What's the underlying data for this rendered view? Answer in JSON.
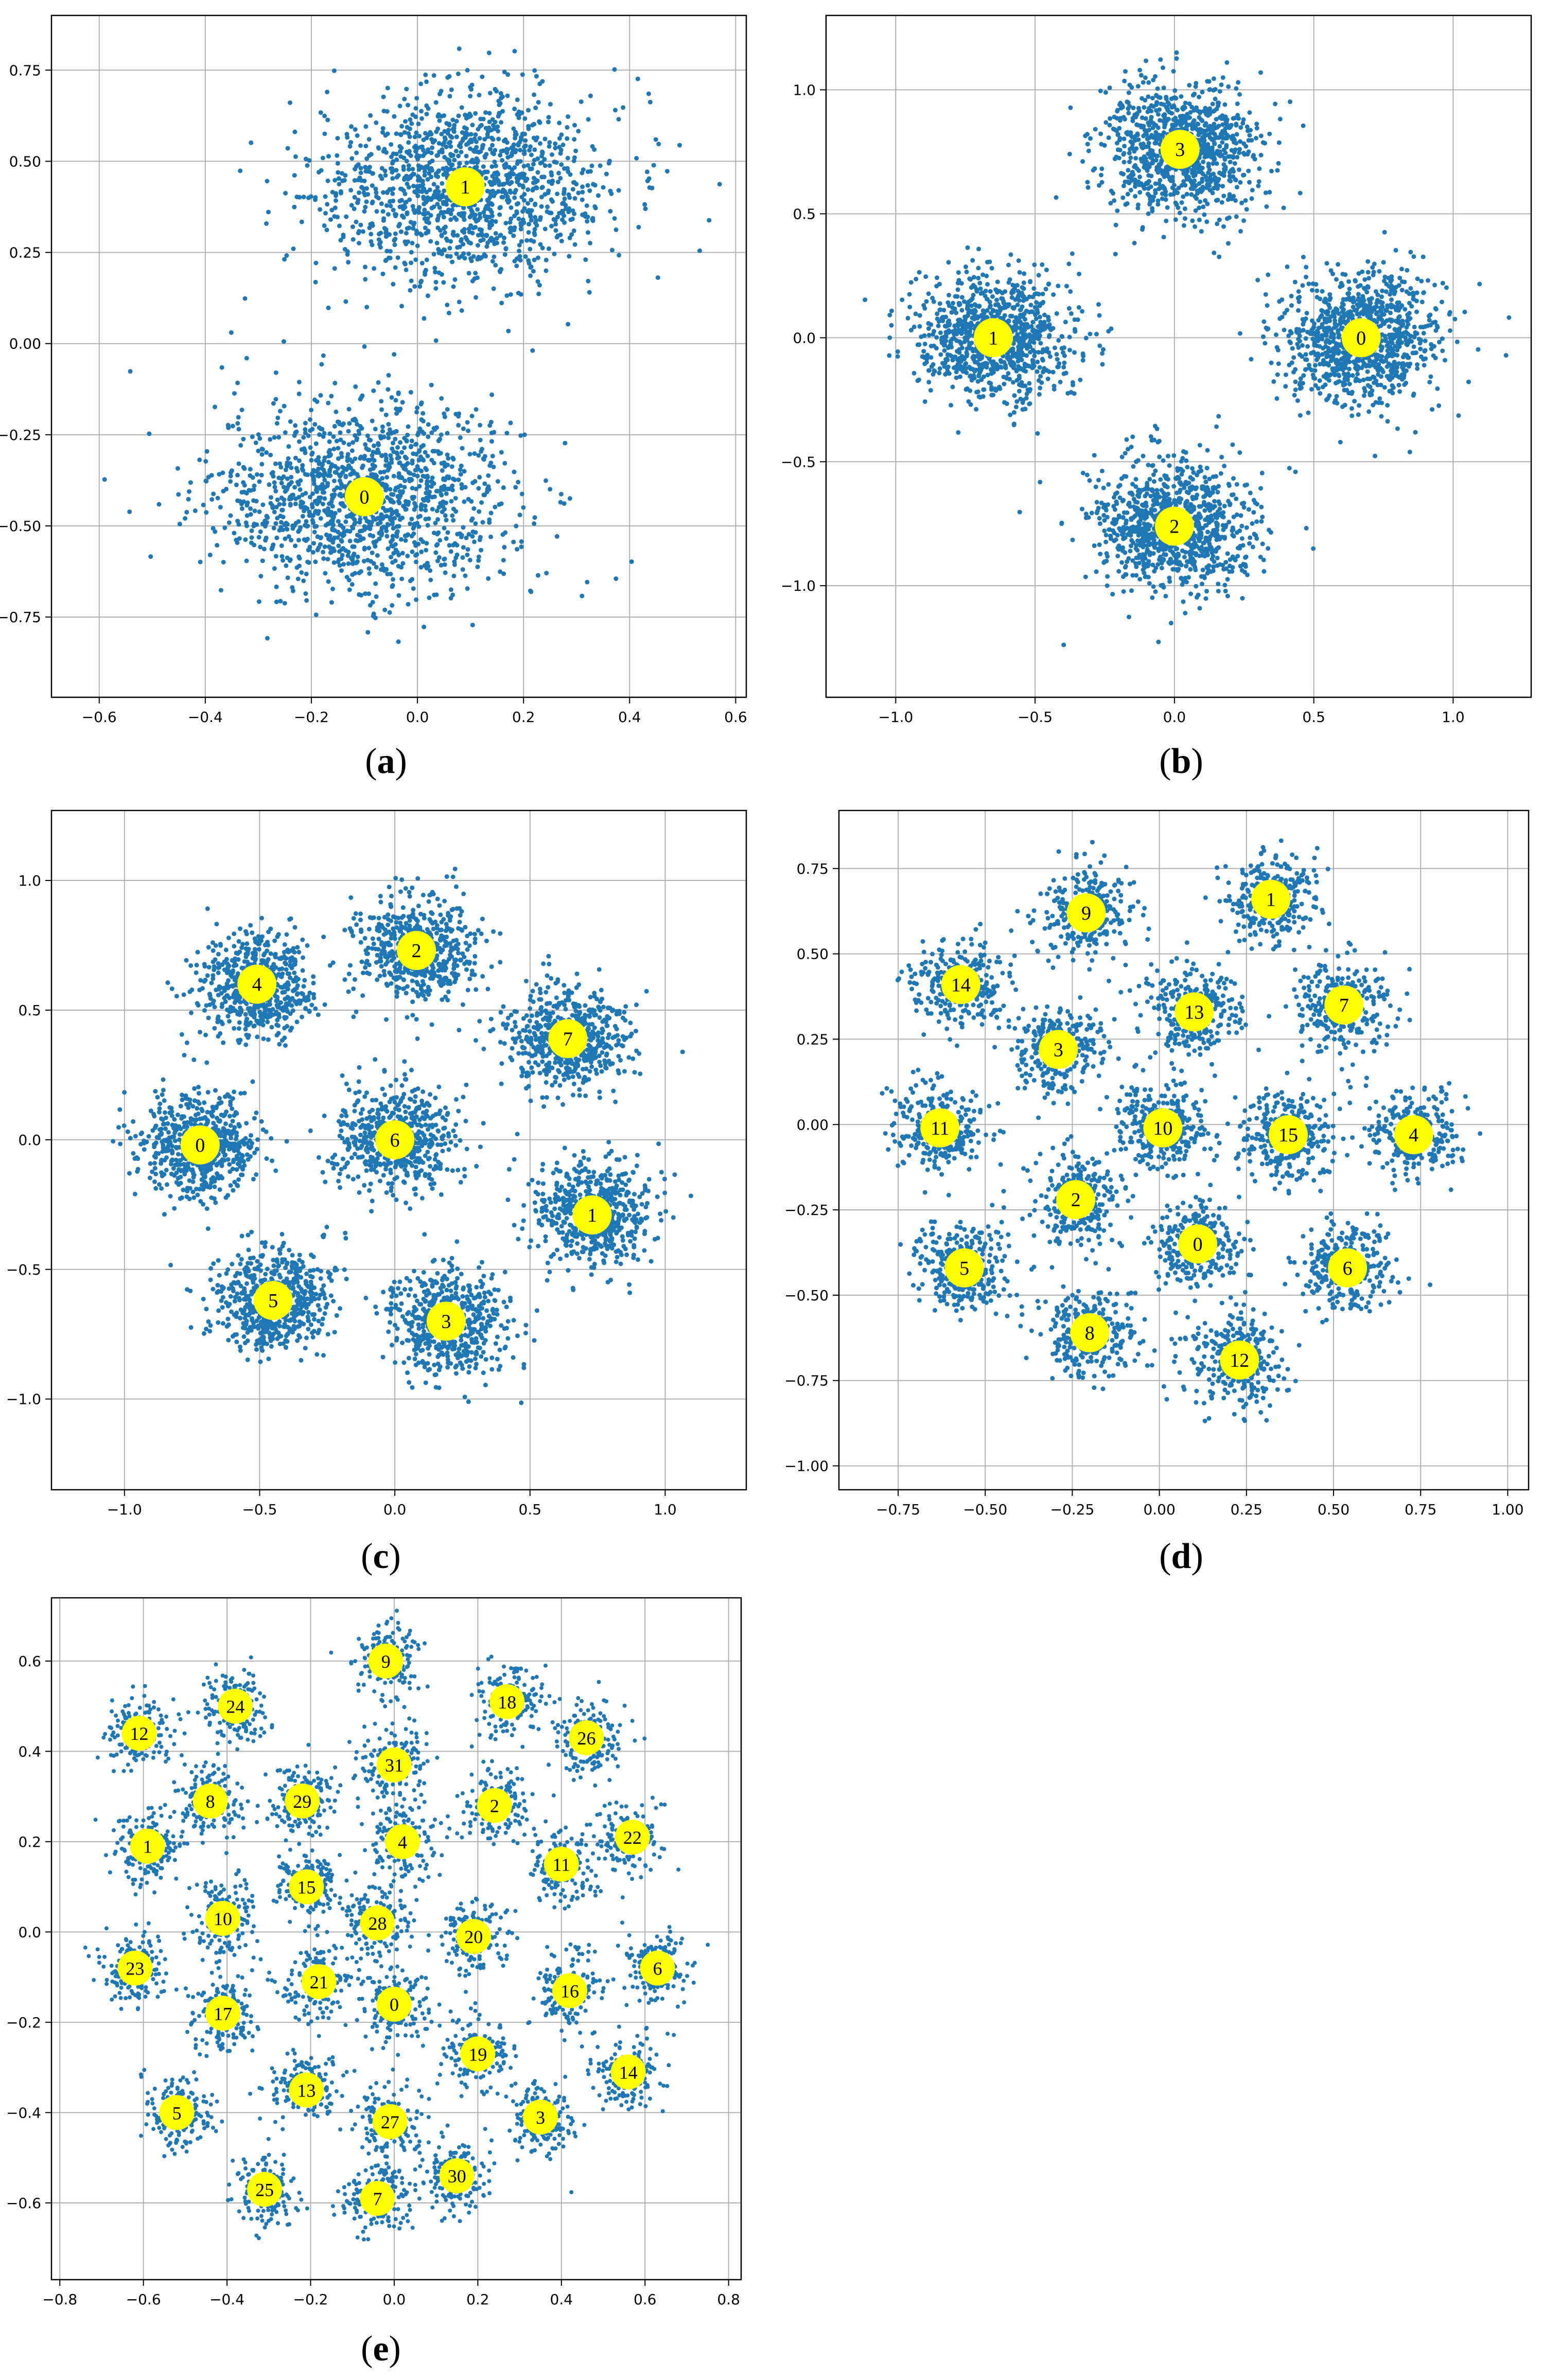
{
  "colors": {
    "points": "#1f77b4",
    "centroid_fill": "#ffff00",
    "grid": "#b0b0b0",
    "axes": "#000000"
  },
  "chart_data": [
    {
      "id": "a",
      "type": "scatter",
      "caption": "a",
      "title": "",
      "xlabel": "",
      "ylabel": "",
      "xlim": [
        -0.69,
        0.62
      ],
      "ylim": [
        -0.97,
        0.9
      ],
      "xticks": [
        -0.6,
        -0.4,
        -0.2,
        0.0,
        0.2,
        0.4,
        0.6
      ],
      "xticklabels": [
        "−0.6",
        "−0.4",
        "−0.2",
        "0.0",
        "0.2",
        "0.4",
        "0.6"
      ],
      "yticks": [
        -0.75,
        -0.5,
        -0.25,
        0.0,
        0.25,
        0.5,
        0.75
      ],
      "yticklabels": [
        "−0.75",
        "−0.50",
        "−0.25",
        "0.00",
        "0.25",
        "0.50",
        "0.75"
      ],
      "grid": true,
      "clusters": [
        {
          "label": "0",
          "x": -0.1,
          "y": -0.42,
          "spread_x": 0.14,
          "spread_y": 0.13,
          "n": 1400
        },
        {
          "label": "1",
          "x": 0.09,
          "y": 0.43,
          "spread_x": 0.14,
          "spread_y": 0.13,
          "n": 1400
        }
      ]
    },
    {
      "id": "b",
      "type": "scatter",
      "caption": "b",
      "title": "",
      "xlabel": "",
      "ylabel": "",
      "xlim": [
        -1.25,
        1.28
      ],
      "ylim": [
        -1.45,
        1.3
      ],
      "xticks": [
        -1.0,
        -0.5,
        0.0,
        0.5,
        1.0
      ],
      "xticklabels": [
        "−1.0",
        "−0.5",
        "0.0",
        "0.5",
        "1.0"
      ],
      "yticks": [
        -1.0,
        -0.5,
        0.0,
        0.5,
        1.0
      ],
      "yticklabels": [
        "−1.0",
        "−0.5",
        "0.0",
        "0.5",
        "1.0"
      ],
      "grid": true,
      "clusters": [
        {
          "label": "0",
          "x": 0.67,
          "y": 0.0,
          "spread_x": 0.14,
          "spread_y": 0.13,
          "n": 1000
        },
        {
          "label": "1",
          "x": -0.65,
          "y": 0.0,
          "spread_x": 0.14,
          "spread_y": 0.13,
          "n": 1000
        },
        {
          "label": "2",
          "x": 0.0,
          "y": -0.76,
          "spread_x": 0.14,
          "spread_y": 0.13,
          "n": 1000
        },
        {
          "label": "3",
          "x": 0.02,
          "y": 0.76,
          "spread_x": 0.14,
          "spread_y": 0.13,
          "n": 1000
        }
      ]
    },
    {
      "id": "c",
      "type": "scatter",
      "caption": "c",
      "title": "",
      "xlabel": "",
      "ylabel": "",
      "xlim": [
        -1.27,
        1.3
      ],
      "ylim": [
        -1.35,
        1.27
      ],
      "xticks": [
        -1.0,
        -0.5,
        0.0,
        0.5,
        1.0
      ],
      "xticklabels": [
        "−1.0",
        "−0.5",
        "0.0",
        "0.5",
        "1.0"
      ],
      "yticks": [
        -1.0,
        -0.5,
        0.0,
        0.5,
        1.0
      ],
      "yticklabels": [
        "−1.0",
        "−0.5",
        "0.0",
        "0.5",
        "1.0"
      ],
      "grid": true,
      "clusters": [
        {
          "label": "0",
          "x": -0.72,
          "y": -0.02,
          "spread_x": 0.11,
          "spread_y": 0.1,
          "n": 600
        },
        {
          "label": "1",
          "x": 0.73,
          "y": -0.29,
          "spread_x": 0.11,
          "spread_y": 0.1,
          "n": 600
        },
        {
          "label": "2",
          "x": 0.08,
          "y": 0.73,
          "spread_x": 0.11,
          "spread_y": 0.1,
          "n": 600
        },
        {
          "label": "3",
          "x": 0.19,
          "y": -0.7,
          "spread_x": 0.11,
          "spread_y": 0.1,
          "n": 600
        },
        {
          "label": "4",
          "x": -0.51,
          "y": 0.6,
          "spread_x": 0.11,
          "spread_y": 0.1,
          "n": 600
        },
        {
          "label": "5",
          "x": -0.45,
          "y": -0.62,
          "spread_x": 0.11,
          "spread_y": 0.1,
          "n": 600
        },
        {
          "label": "6",
          "x": 0.0,
          "y": 0.0,
          "spread_x": 0.11,
          "spread_y": 0.1,
          "n": 600
        },
        {
          "label": "7",
          "x": 0.64,
          "y": 0.39,
          "spread_x": 0.11,
          "spread_y": 0.1,
          "n": 600
        }
      ]
    },
    {
      "id": "d",
      "type": "scatter",
      "caption": "d",
      "title": "",
      "xlabel": "",
      "ylabel": "",
      "xlim": [
        -0.92,
        1.06
      ],
      "ylim": [
        -1.07,
        0.92
      ],
      "xticks": [
        -0.75,
        -0.5,
        -0.25,
        0.0,
        0.25,
        0.5,
        0.75,
        1.0
      ],
      "xticklabels": [
        "−0.75",
        "−0.50",
        "−0.25",
        "0.00",
        "0.25",
        "0.50",
        "0.75",
        "1.00"
      ],
      "yticks": [
        -1.0,
        -0.75,
        -0.5,
        -0.25,
        0.0,
        0.25,
        0.5,
        0.75
      ],
      "yticklabels": [
        "−1.00",
        "−0.75",
        "−0.50",
        "−0.25",
        "0.00",
        "0.25",
        "0.50",
        "0.75"
      ],
      "grid": true,
      "clusters": [
        {
          "label": "0",
          "x": 0.11,
          "y": -0.35,
          "spread_x": 0.065,
          "spread_y": 0.065,
          "n": 300
        },
        {
          "label": "1",
          "x": 0.32,
          "y": 0.66,
          "spread_x": 0.065,
          "spread_y": 0.065,
          "n": 300
        },
        {
          "label": "2",
          "x": -0.24,
          "y": -0.22,
          "spread_x": 0.065,
          "spread_y": 0.065,
          "n": 300
        },
        {
          "label": "3",
          "x": -0.29,
          "y": 0.22,
          "spread_x": 0.065,
          "spread_y": 0.065,
          "n": 300
        },
        {
          "label": "4",
          "x": 0.73,
          "y": -0.03,
          "spread_x": 0.065,
          "spread_y": 0.065,
          "n": 300
        },
        {
          "label": "5",
          "x": -0.56,
          "y": -0.42,
          "spread_x": 0.065,
          "spread_y": 0.065,
          "n": 300
        },
        {
          "label": "6",
          "x": 0.54,
          "y": -0.42,
          "spread_x": 0.065,
          "spread_y": 0.065,
          "n": 300
        },
        {
          "label": "7",
          "x": 0.53,
          "y": 0.35,
          "spread_x": 0.065,
          "spread_y": 0.065,
          "n": 300
        },
        {
          "label": "8",
          "x": -0.2,
          "y": -0.61,
          "spread_x": 0.065,
          "spread_y": 0.065,
          "n": 300
        },
        {
          "label": "9",
          "x": -0.21,
          "y": 0.62,
          "spread_x": 0.065,
          "spread_y": 0.065,
          "n": 300
        },
        {
          "label": "10",
          "x": 0.01,
          "y": -0.01,
          "spread_x": 0.065,
          "spread_y": 0.065,
          "n": 300
        },
        {
          "label": "11",
          "x": -0.63,
          "y": -0.01,
          "spread_x": 0.065,
          "spread_y": 0.065,
          "n": 300
        },
        {
          "label": "12",
          "x": 0.23,
          "y": -0.69,
          "spread_x": 0.065,
          "spread_y": 0.065,
          "n": 300
        },
        {
          "label": "13",
          "x": 0.1,
          "y": 0.33,
          "spread_x": 0.065,
          "spread_y": 0.065,
          "n": 300
        },
        {
          "label": "14",
          "x": -0.57,
          "y": 0.41,
          "spread_x": 0.065,
          "spread_y": 0.065,
          "n": 300
        },
        {
          "label": "15",
          "x": 0.37,
          "y": -0.03,
          "spread_x": 0.065,
          "spread_y": 0.065,
          "n": 300
        }
      ]
    },
    {
      "id": "e",
      "type": "scatter",
      "caption": "e",
      "title": "",
      "xlabel": "",
      "ylabel": "",
      "xlim": [
        -0.82,
        0.83
      ],
      "ylim": [
        -0.77,
        0.74
      ],
      "xticks": [
        -0.8,
        -0.6,
        -0.4,
        -0.2,
        0.0,
        0.2,
        0.4,
        0.6,
        0.8
      ],
      "xticklabels": [
        "−0.8",
        "−0.6",
        "−0.4",
        "−0.2",
        "0.0",
        "0.2",
        "0.4",
        "0.6",
        "0.8"
      ],
      "yticks": [
        -0.6,
        -0.4,
        -0.2,
        0.0,
        0.2,
        0.4,
        0.6
      ],
      "yticklabels": [
        "−0.6",
        "−0.4",
        "−0.2",
        "0.0",
        "0.2",
        "0.4",
        "0.6"
      ],
      "grid": true,
      "clusters": [
        {
          "label": "0",
          "x": 0.0,
          "y": -0.16,
          "spread_x": 0.04,
          "spread_y": 0.04,
          "n": 170
        },
        {
          "label": "1",
          "x": -0.59,
          "y": 0.19,
          "spread_x": 0.04,
          "spread_y": 0.04,
          "n": 170
        },
        {
          "label": "2",
          "x": 0.24,
          "y": 0.28,
          "spread_x": 0.04,
          "spread_y": 0.04,
          "n": 170
        },
        {
          "label": "3",
          "x": 0.35,
          "y": -0.41,
          "spread_x": 0.04,
          "spread_y": 0.04,
          "n": 170
        },
        {
          "label": "4",
          "x": 0.02,
          "y": 0.2,
          "spread_x": 0.04,
          "spread_y": 0.04,
          "n": 170
        },
        {
          "label": "5",
          "x": -0.52,
          "y": -0.4,
          "spread_x": 0.04,
          "spread_y": 0.04,
          "n": 170
        },
        {
          "label": "6",
          "x": 0.63,
          "y": -0.08,
          "spread_x": 0.04,
          "spread_y": 0.04,
          "n": 170
        },
        {
          "label": "7",
          "x": -0.04,
          "y": -0.59,
          "spread_x": 0.04,
          "spread_y": 0.04,
          "n": 170
        },
        {
          "label": "8",
          "x": -0.44,
          "y": 0.29,
          "spread_x": 0.04,
          "spread_y": 0.04,
          "n": 170
        },
        {
          "label": "9",
          "x": -0.02,
          "y": 0.6,
          "spread_x": 0.04,
          "spread_y": 0.04,
          "n": 170
        },
        {
          "label": "10",
          "x": -0.41,
          "y": 0.03,
          "spread_x": 0.04,
          "spread_y": 0.04,
          "n": 170
        },
        {
          "label": "11",
          "x": 0.4,
          "y": 0.15,
          "spread_x": 0.04,
          "spread_y": 0.04,
          "n": 170
        },
        {
          "label": "12",
          "x": -0.61,
          "y": 0.44,
          "spread_x": 0.04,
          "spread_y": 0.04,
          "n": 170
        },
        {
          "label": "13",
          "x": -0.21,
          "y": -0.35,
          "spread_x": 0.04,
          "spread_y": 0.04,
          "n": 170
        },
        {
          "label": "14",
          "x": 0.56,
          "y": -0.31,
          "spread_x": 0.04,
          "spread_y": 0.04,
          "n": 170
        },
        {
          "label": "15",
          "x": -0.21,
          "y": 0.1,
          "spread_x": 0.04,
          "spread_y": 0.04,
          "n": 170
        },
        {
          "label": "16",
          "x": 0.42,
          "y": -0.13,
          "spread_x": 0.04,
          "spread_y": 0.04,
          "n": 170
        },
        {
          "label": "17",
          "x": -0.41,
          "y": -0.18,
          "spread_x": 0.04,
          "spread_y": 0.04,
          "n": 170
        },
        {
          "label": "18",
          "x": 0.27,
          "y": 0.51,
          "spread_x": 0.04,
          "spread_y": 0.04,
          "n": 170
        },
        {
          "label": "19",
          "x": 0.2,
          "y": -0.27,
          "spread_x": 0.04,
          "spread_y": 0.04,
          "n": 170
        },
        {
          "label": "20",
          "x": 0.19,
          "y": -0.01,
          "spread_x": 0.04,
          "spread_y": 0.04,
          "n": 170
        },
        {
          "label": "21",
          "x": -0.18,
          "y": -0.11,
          "spread_x": 0.04,
          "spread_y": 0.04,
          "n": 170
        },
        {
          "label": "22",
          "x": 0.57,
          "y": 0.21,
          "spread_x": 0.04,
          "spread_y": 0.04,
          "n": 170
        },
        {
          "label": "23",
          "x": -0.62,
          "y": -0.08,
          "spread_x": 0.04,
          "spread_y": 0.04,
          "n": 170
        },
        {
          "label": "24",
          "x": -0.38,
          "y": 0.5,
          "spread_x": 0.04,
          "spread_y": 0.04,
          "n": 170
        },
        {
          "label": "25",
          "x": -0.31,
          "y": -0.57,
          "spread_x": 0.04,
          "spread_y": 0.04,
          "n": 170
        },
        {
          "label": "26",
          "x": 0.46,
          "y": 0.43,
          "spread_x": 0.04,
          "spread_y": 0.04,
          "n": 170
        },
        {
          "label": "27",
          "x": -0.01,
          "y": -0.42,
          "spread_x": 0.04,
          "spread_y": 0.04,
          "n": 170
        },
        {
          "label": "28",
          "x": -0.04,
          "y": 0.02,
          "spread_x": 0.04,
          "spread_y": 0.04,
          "n": 170
        },
        {
          "label": "29",
          "x": -0.22,
          "y": 0.29,
          "spread_x": 0.04,
          "spread_y": 0.04,
          "n": 170
        },
        {
          "label": "30",
          "x": 0.15,
          "y": -0.54,
          "spread_x": 0.04,
          "spread_y": 0.04,
          "n": 170
        },
        {
          "label": "31",
          "x": 0.0,
          "y": 0.37,
          "spread_x": 0.04,
          "spread_y": 0.04,
          "n": 170
        }
      ]
    }
  ]
}
